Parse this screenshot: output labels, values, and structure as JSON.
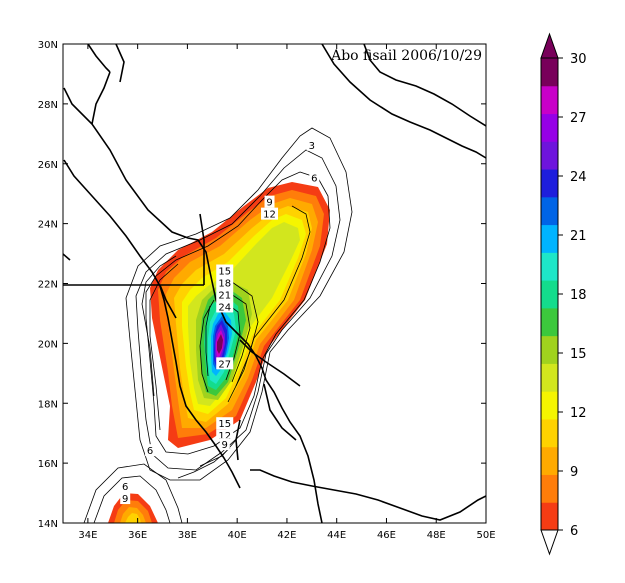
{
  "map": {
    "title": "Abo fisail 2006/10/29",
    "lon_ticks": [
      "34E",
      "36E",
      "38E",
      "40E",
      "42E",
      "44E",
      "46E",
      "48E",
      "50E"
    ],
    "lat_ticks": [
      "14N",
      "16N",
      "18N",
      "20N",
      "22N",
      "24N",
      "26N",
      "28N",
      "30N"
    ],
    "lon_range": [
      33,
      50
    ],
    "lat_range": [
      14,
      30
    ]
  },
  "contour_labels": [
    {
      "value": "3",
      "lon": 43.0,
      "lat": 26.6
    },
    {
      "value": "6",
      "lon": 43.1,
      "lat": 25.5
    },
    {
      "value": "9",
      "lon": 41.3,
      "lat": 24.7
    },
    {
      "value": "12",
      "lon": 41.3,
      "lat": 24.3
    },
    {
      "value": "15",
      "lon": 39.5,
      "lat": 22.4
    },
    {
      "value": "18",
      "lon": 39.5,
      "lat": 22.0
    },
    {
      "value": "21",
      "lon": 39.5,
      "lat": 21.6
    },
    {
      "value": "24",
      "lon": 39.5,
      "lat": 21.2
    },
    {
      "value": "27",
      "lon": 39.5,
      "lat": 19.3
    },
    {
      "value": "15",
      "lon": 39.5,
      "lat": 17.3
    },
    {
      "value": "12",
      "lon": 39.5,
      "lat": 16.9
    },
    {
      "value": "9",
      "lon": 39.5,
      "lat": 16.6
    },
    {
      "value": "6",
      "lon": 36.5,
      "lat": 16.4
    },
    {
      "value": "6",
      "lon": 35.5,
      "lat": 15.2
    },
    {
      "value": "9",
      "lon": 35.5,
      "lat": 14.8
    }
  ],
  "colorbar": {
    "ticks": [
      "6",
      "9",
      "12",
      "15",
      "18",
      "21",
      "24",
      "27",
      "30"
    ],
    "colors": [
      "#f53c14",
      "#ff7d0a",
      "#ffaa00",
      "#ffd200",
      "#f5f500",
      "#d2e61e",
      "#a0d21e",
      "#3cc83c",
      "#14dc8c",
      "#1ee6c8",
      "#00b4ff",
      "#0064e6",
      "#1e1edc",
      "#6e14dc",
      "#9600e6",
      "#c800c8",
      "#78005a"
    ]
  }
}
